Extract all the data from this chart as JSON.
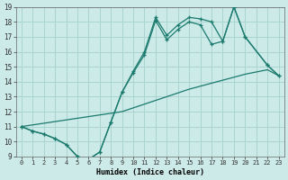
{
  "xlabel": "Humidex (Indice chaleur)",
  "xlim": [
    -0.5,
    23.5
  ],
  "ylim": [
    9,
    19
  ],
  "xticks": [
    0,
    1,
    2,
    3,
    4,
    5,
    6,
    7,
    8,
    9,
    10,
    11,
    12,
    13,
    14,
    15,
    16,
    17,
    18,
    19,
    20,
    21,
    22,
    23
  ],
  "yticks": [
    9,
    10,
    11,
    12,
    13,
    14,
    15,
    16,
    17,
    18,
    19
  ],
  "bg_color": "#cceae7",
  "grid_color": "#aad4d0",
  "line_color": "#1a7a6e",
  "line1_x": [
    0,
    1,
    2,
    3,
    4,
    5,
    6,
    7,
    8,
    9,
    10,
    11,
    12,
    13,
    14,
    15,
    16,
    17,
    18,
    19,
    20,
    22,
    23
  ],
  "line1_y": [
    11,
    10.7,
    10.5,
    10.2,
    9.8,
    9.0,
    8.8,
    9.3,
    11.3,
    13.3,
    14.7,
    16.0,
    18.3,
    17.1,
    17.8,
    18.3,
    18.2,
    18.0,
    16.7,
    19.0,
    17.0,
    15.1,
    14.4
  ],
  "line2_x": [
    0,
    1,
    2,
    3,
    4,
    5,
    6,
    7,
    8,
    9,
    10,
    11,
    12,
    13,
    14,
    15,
    16,
    17,
    18,
    19,
    20,
    22,
    23
  ],
  "line2_y": [
    11,
    10.7,
    10.5,
    10.2,
    9.8,
    9.0,
    8.8,
    9.3,
    11.3,
    13.3,
    14.6,
    15.8,
    18.1,
    16.8,
    17.5,
    18.0,
    17.8,
    16.5,
    16.7,
    19.0,
    17.0,
    15.1,
    14.4
  ],
  "line3_x": [
    0,
    9,
    11,
    13,
    15,
    17,
    18,
    19,
    20,
    22,
    23
  ],
  "line3_y": [
    11,
    12.0,
    12.5,
    13.0,
    13.5,
    13.9,
    14.1,
    14.3,
    14.5,
    14.8,
    14.4
  ]
}
